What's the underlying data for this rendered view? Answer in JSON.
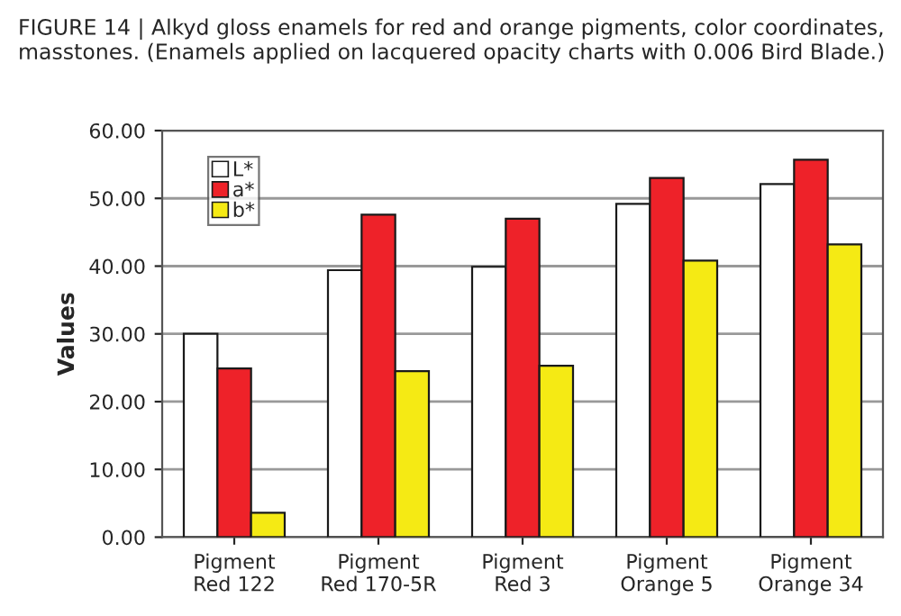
{
  "chart_data": {
    "type": "bar",
    "title": "FIGURE 14 | Alkyd gloss enamels for red and orange pigments, color coordinates, masstones. (Enamels applied on lacquered opacity charts with 0.006 Bird Blade.)",
    "ylabel": "Values",
    "categories": [
      "Pigment Red 122",
      "Pigment Red 170-5R",
      "Pigment Red 3",
      "Pigment Orange 5",
      "Pigment Orange 34"
    ],
    "series": [
      {
        "name": "L*",
        "color": "#ffffff",
        "values": [
          30.0,
          39.4,
          39.9,
          49.2,
          52.1
        ]
      },
      {
        "name": "a*",
        "color": "#ee2229",
        "values": [
          24.9,
          47.6,
          47.0,
          53.0,
          55.7
        ]
      },
      {
        "name": "b*",
        "color": "#f5ea14",
        "values": [
          3.6,
          24.5,
          25.3,
          40.8,
          43.2
        ]
      }
    ],
    "ylim": [
      0,
      60
    ],
    "yticks": [
      {
        "value": 0,
        "label": "0.00"
      },
      {
        "value": 10,
        "label": "10.00"
      },
      {
        "value": 20,
        "label": "20.00"
      },
      {
        "value": 30,
        "label": "30.00"
      },
      {
        "value": 40,
        "label": "40.00"
      },
      {
        "value": 50,
        "label": "50.00"
      },
      {
        "value": 60,
        "label": "60.00"
      }
    ],
    "grid": "y",
    "legend": "top left"
  }
}
